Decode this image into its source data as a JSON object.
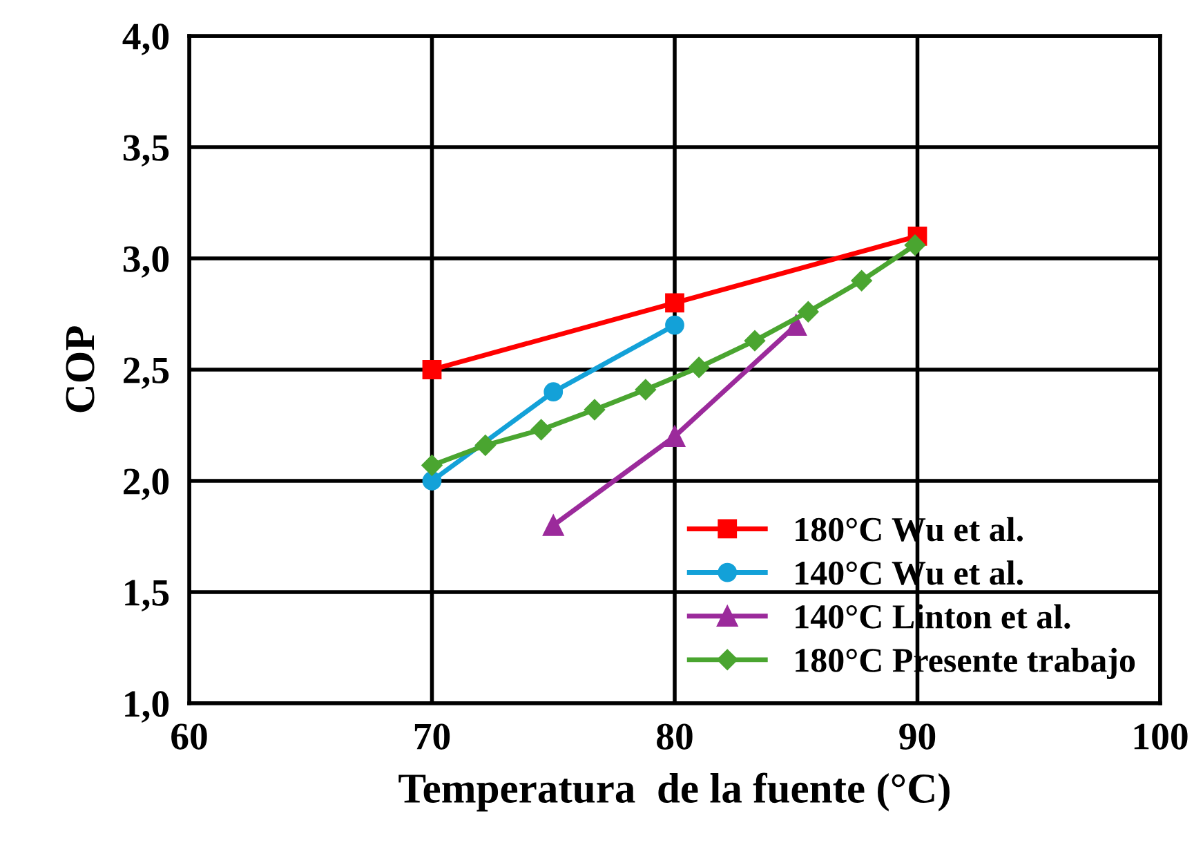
{
  "chart_data": {
    "type": "line",
    "xlabel": "Temperatura  de la fuente (°C)",
    "ylabel": "COP",
    "xlim": [
      60,
      100
    ],
    "xticks": [
      60,
      70,
      80,
      90,
      100
    ],
    "ylim": [
      1.0,
      4.0
    ],
    "yticks": [
      {
        "value": 1.0,
        "label": "1,0"
      },
      {
        "value": 1.5,
        "label": "1,5"
      },
      {
        "value": 2.0,
        "label": "2,0"
      },
      {
        "value": 2.5,
        "label": "2,5"
      },
      {
        "value": 3.0,
        "label": "3,0"
      },
      {
        "value": 3.5,
        "label": "3,5"
      },
      {
        "value": 4.0,
        "label": "4,0"
      }
    ],
    "grid": true,
    "legend": "bottom right",
    "line_style": "solid",
    "series": [
      {
        "name": "180°C Wu et al.",
        "color": "#ff0000",
        "marker": "square",
        "x": [
          70,
          80,
          90
        ],
        "values": [
          2.5,
          2.8,
          3.1
        ]
      },
      {
        "name": "140°C Wu et al.",
        "color": "#13a1d8",
        "marker": "circle",
        "x": [
          70,
          75,
          80
        ],
        "values": [
          2.0,
          2.4,
          2.7
        ]
      },
      {
        "name": "140°C Linton et al.",
        "color": "#9b2a9b",
        "marker": "triangle",
        "x": [
          75,
          80,
          85
        ],
        "values": [
          1.8,
          2.2,
          2.7
        ]
      },
      {
        "name": "180°C Presente trabajo",
        "color": "#4aa530",
        "marker": "diamond",
        "x": [
          70,
          72.2,
          74.5,
          76.7,
          78.8,
          81.0,
          83.3,
          85.5,
          87.7,
          89.9
        ],
        "values": [
          2.07,
          2.16,
          2.23,
          2.32,
          2.41,
          2.51,
          2.63,
          2.76,
          2.9,
          3.06
        ]
      }
    ]
  }
}
